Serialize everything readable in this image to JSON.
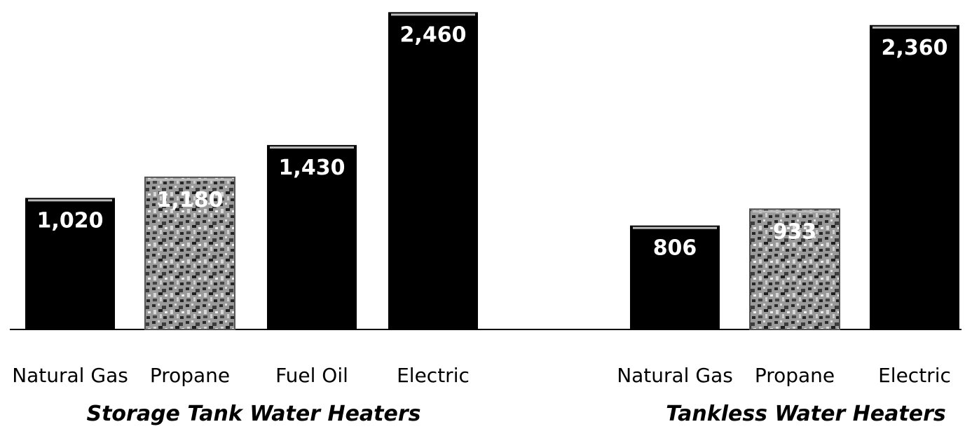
{
  "colors": {
    "bar_solid": "#000000",
    "bar_textured": "#8a8a8a",
    "baseline": "#000000",
    "label_on_bar": "#ffffff",
    "text": "#000000"
  },
  "chart_data": {
    "type": "bar",
    "ylim": [
      0,
      2500
    ],
    "grid": false,
    "legend": "none",
    "groups": [
      {
        "name": "Storage Tank Water Heaters",
        "categories": [
          "Natural Gas",
          "Propane",
          "Fuel Oil",
          "Electric"
        ],
        "values": [
          1020,
          1180,
          1430,
          2460
        ],
        "value_labels": [
          "1,020",
          "1,180",
          "1,430",
          "2,460"
        ],
        "textured": [
          false,
          true,
          false,
          false
        ]
      },
      {
        "name": "Tankless Water Heaters",
        "categories": [
          "Natural Gas",
          "Propane",
          "Electric"
        ],
        "values": [
          806,
          933,
          2360
        ],
        "value_labels": [
          "806",
          "933",
          "2,360"
        ],
        "textured": [
          false,
          true,
          false
        ]
      }
    ]
  }
}
